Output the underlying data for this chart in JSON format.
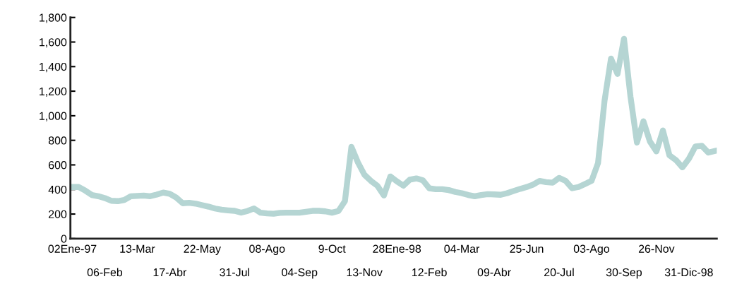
{
  "chart_data": {
    "type": "line",
    "categories": [
      "02Ene-97",
      null,
      null,
      null,
      null,
      "06-Feb",
      null,
      null,
      null,
      null,
      "13-Mar",
      null,
      null,
      null,
      null,
      "17-Abr",
      null,
      null,
      null,
      null,
      "22-May",
      null,
      null,
      null,
      null,
      "31-Jul",
      null,
      null,
      null,
      null,
      "08-Ago",
      null,
      null,
      null,
      null,
      "04-Sep",
      null,
      null,
      null,
      null,
      "9-Oct",
      null,
      null,
      null,
      null,
      "13-Nov",
      null,
      null,
      null,
      null,
      "28Ene-98",
      null,
      null,
      null,
      null,
      "12-Feb",
      null,
      null,
      null,
      null,
      "04-Mar",
      null,
      null,
      null,
      null,
      "09-Abr",
      null,
      null,
      null,
      null,
      "25-Jun",
      null,
      null,
      null,
      null,
      "20-Jul",
      null,
      null,
      null,
      null,
      "03-Ago",
      null,
      null,
      null,
      null,
      "30-Sep",
      null,
      null,
      null,
      null,
      "26-Nov",
      null,
      null,
      null,
      null,
      "31-Dic-98",
      null,
      null,
      null,
      null
    ],
    "series": [
      {
        "color": "#b5d5d3",
        "values": [
          420,
          420,
          390,
          355,
          345,
          330,
          308,
          305,
          315,
          345,
          348,
          350,
          345,
          358,
          375,
          365,
          335,
          288,
          292,
          285,
          272,
          260,
          245,
          235,
          230,
          226,
          212,
          225,
          245,
          211,
          205,
          202,
          210,
          211,
          211,
          211,
          218,
          226,
          226,
          222,
          211,
          225,
          305,
          747,
          621,
          520,
          470,
          430,
          351,
          506,
          466,
          431,
          480,
          490,
          475,
          410,
          402,
          402,
          395,
          380,
          370,
          355,
          345,
          355,
          362,
          360,
          357,
          370,
          388,
          405,
          420,
          440,
          470,
          460,
          455,
          494,
          470,
          410,
          420,
          445,
          470,
          615,
          1121,
          1466,
          1340,
          1627,
          1156,
          782,
          955,
          790,
          710,
          880,
          678,
          640,
          580,
          650,
          750,
          755,
          700,
          713
        ]
      }
    ],
    "ylim": [
      0,
      1800
    ],
    "yticks": [
      0,
      200,
      400,
      600,
      800,
      {
        "value": 1000,
        "label": "1,000"
      },
      {
        "value": 1200,
        "label": "1,200"
      },
      {
        "value": 1400,
        "label": "1,400"
      },
      {
        "value": 1600,
        "label": "1,600"
      },
      {
        "value": 1800,
        "label": "1,800"
      }
    ],
    "grid": false,
    "legend": false,
    "marker": "none",
    "line_style": "solid"
  }
}
